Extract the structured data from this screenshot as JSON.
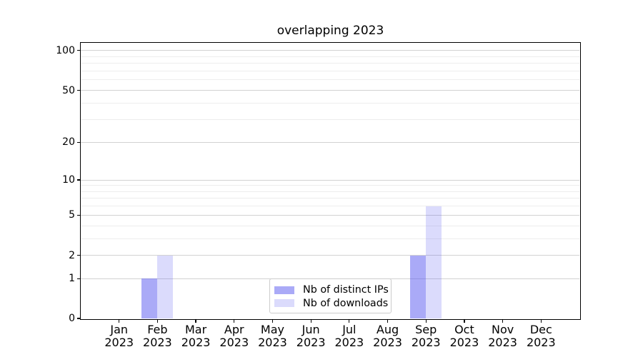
{
  "title": "overlapping 2023",
  "chart_data": {
    "type": "bar",
    "title": "overlapping 2023",
    "categories": [
      "Jan",
      "Feb",
      "Mar",
      "Apr",
      "May",
      "Jun",
      "Jul",
      "Aug",
      "Sep",
      "Oct",
      "Nov",
      "Dec"
    ],
    "category_year": "2023",
    "series": [
      {
        "name": "Nb of distinct IPs",
        "color": "rgba(85,85,240,0.50)",
        "values": [
          0,
          1,
          0,
          0,
          0,
          0,
          0,
          0,
          2,
          0,
          0,
          0
        ]
      },
      {
        "name": "Nb of downloads",
        "color": "rgba(85,85,240,0.21)",
        "values": [
          0,
          2,
          0,
          0,
          0,
          0,
          0,
          0,
          6,
          0,
          0,
          0
        ]
      }
    ],
    "y_axis": {
      "scale": "log-like (log of value+1)",
      "tick_values": [
        0,
        1,
        2,
        5,
        10,
        20,
        50,
        100
      ],
      "tick_labels": [
        "0",
        "1",
        "2",
        "5",
        "10",
        "20",
        "50",
        "100"
      ],
      "minor_grid_values": [
        3,
        4,
        6,
        7,
        8,
        9,
        30,
        40,
        60,
        70,
        80,
        90
      ],
      "range": [
        0,
        114
      ],
      "grid": true
    },
    "x_axis": {
      "tick_label_lines": 2,
      "grid": false
    },
    "legend": {
      "position": "lower center",
      "entries": [
        "Nb of distinct IPs",
        "Nb of downloads"
      ]
    }
  },
  "colors": {
    "background": "#ffffff",
    "bar_dark_rendered": "#aaaaf0",
    "bar_light_rendered": "#dcdcf6",
    "major_grid": "#d2d2d2",
    "minor_grid": "#ededed",
    "axis_spine": "#000000",
    "legend_border": "#cccccc",
    "text": "#000000"
  }
}
